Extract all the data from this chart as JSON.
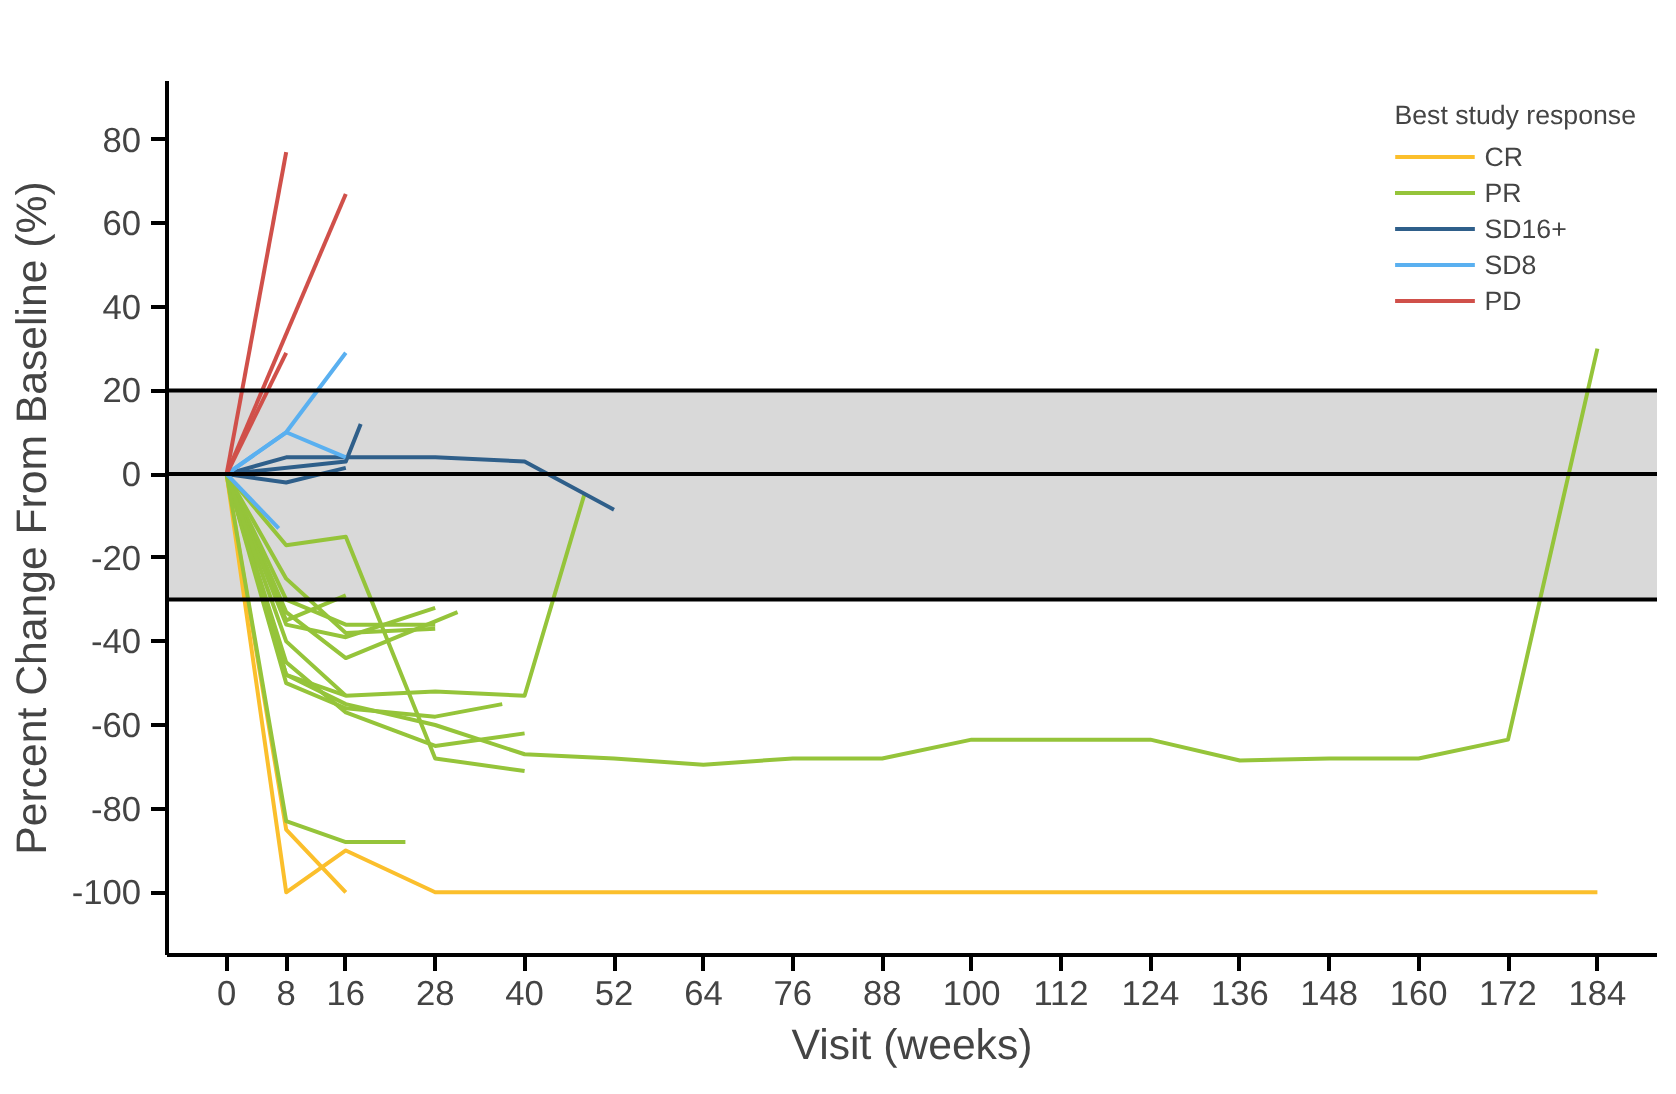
{
  "chart_data": {
    "type": "line",
    "xlabel": "Visit (weeks)",
    "ylabel": "Percent Change From Baseline (%)",
    "legend_title": "Best study response",
    "xlim": [
      -8,
      192
    ],
    "xticks": [
      0,
      8,
      16,
      28,
      40,
      52,
      64,
      76,
      88,
      100,
      112,
      124,
      136,
      148,
      160,
      172,
      184
    ],
    "ylim": [
      -115,
      94
    ],
    "yticks": [
      -100,
      -80,
      -60,
      -40,
      -20,
      0,
      20,
      40,
      60,
      80
    ],
    "grid": false,
    "legend": "top right",
    "marker": "none",
    "line_style": "solid",
    "bands": [
      {
        "axis": "y",
        "from": -30,
        "to": 20,
        "color": "#d9d9d9"
      }
    ],
    "ref_lines": [
      {
        "axis": "y",
        "value": 20,
        "color": "#000000"
      },
      {
        "axis": "y",
        "value": 0,
        "color": "#000000"
      },
      {
        "axis": "y",
        "value": -30,
        "color": "#000000"
      }
    ],
    "series": [
      {
        "name": "CR",
        "color": "#fbbf2c",
        "x": [
          0,
          8,
          16,
          28,
          184
        ],
        "values": [
          0,
          -100,
          -90,
          -100,
          -100
        ]
      },
      {
        "color": "#fbbf2c",
        "x": [
          0,
          8,
          16
        ],
        "values": [
          0,
          -85,
          -100
        ]
      },
      {
        "name": "PR",
        "color": "#95c43a",
        "x": [
          0,
          8,
          16,
          28,
          40
        ],
        "values": [
          0,
          -17,
          -15,
          -68,
          -71
        ]
      },
      {
        "color": "#95c43a",
        "x": [
          0,
          8,
          16,
          28,
          40,
          48
        ],
        "values": [
          0,
          -48,
          -53,
          -52,
          -53,
          -5
        ]
      },
      {
        "color": "#95c43a",
        "x": [
          0,
          8,
          16,
          28,
          37
        ],
        "values": [
          0,
          -50,
          -56,
          -58,
          -55
        ]
      },
      {
        "color": "#95c43a",
        "x": [
          0,
          8,
          16,
          28,
          40
        ],
        "values": [
          0,
          -45,
          -57,
          -65,
          -62
        ]
      },
      {
        "color": "#95c43a",
        "x": [
          0,
          8,
          16,
          28,
          40,
          52,
          64,
          76,
          88,
          100,
          112,
          124,
          136,
          148,
          160,
          172,
          184
        ],
        "values": [
          0,
          -48,
          -55,
          -60,
          -67,
          -68,
          -69.5,
          -68,
          -68,
          -63.5,
          -63.5,
          -63.5,
          -68.5,
          -68,
          -68,
          -63.5,
          30
        ]
      },
      {
        "color": "#95c43a",
        "x": [
          0,
          8,
          16,
          24
        ],
        "values": [
          0,
          -83,
          -88,
          -88
        ]
      },
      {
        "color": "#95c43a",
        "x": [
          0,
          8,
          16
        ],
        "values": [
          0,
          -35,
          -29
        ]
      },
      {
        "color": "#95c43a",
        "x": [
          0,
          8,
          16,
          31
        ],
        "values": [
          0,
          -33,
          -44,
          -33
        ]
      },
      {
        "color": "#95c43a",
        "x": [
          0,
          8,
          16,
          28
        ],
        "values": [
          0,
          -30,
          -36,
          -36
        ]
      },
      {
        "color": "#95c43a",
        "x": [
          0,
          8,
          16,
          28
        ],
        "values": [
          0,
          -36,
          -39,
          -32
        ]
      },
      {
        "color": "#95c43a",
        "x": [
          0,
          8,
          16,
          28
        ],
        "values": [
          0,
          -25,
          -38,
          -37
        ]
      },
      {
        "color": "#95c43a",
        "x": [
          0,
          8,
          16
        ],
        "values": [
          0,
          -40,
          -53
        ]
      },
      {
        "name": "SD16+",
        "color": "#2f5f8a",
        "x": [
          0,
          8,
          16,
          28,
          40,
          52
        ],
        "values": [
          0,
          4,
          4,
          4,
          3,
          -8.5
        ]
      },
      {
        "color": "#2f5f8a",
        "x": [
          0,
          8,
          16
        ],
        "values": [
          0,
          -2,
          1.5
        ]
      },
      {
        "color": "#2f5f8a",
        "x": [
          0,
          16,
          18
        ],
        "values": [
          0,
          3,
          12
        ]
      },
      {
        "name": "SD8",
        "color": "#5ab0f0",
        "x": [
          0,
          8,
          16
        ],
        "values": [
          0,
          10,
          29
        ]
      },
      {
        "color": "#5ab0f0",
        "x": [
          0,
          8,
          16
        ],
        "values": [
          0,
          10,
          4
        ]
      },
      {
        "color": "#5ab0f0",
        "x": [
          0,
          7
        ],
        "values": [
          0,
          -13
        ]
      },
      {
        "name": "PD",
        "color": "#d0504a",
        "x": [
          0,
          8
        ],
        "values": [
          0,
          77
        ]
      },
      {
        "color": "#d0504a",
        "x": [
          0,
          16
        ],
        "values": [
          0,
          67
        ]
      },
      {
        "color": "#d0504a",
        "x": [
          0,
          8
        ],
        "values": [
          0,
          29
        ]
      }
    ]
  }
}
